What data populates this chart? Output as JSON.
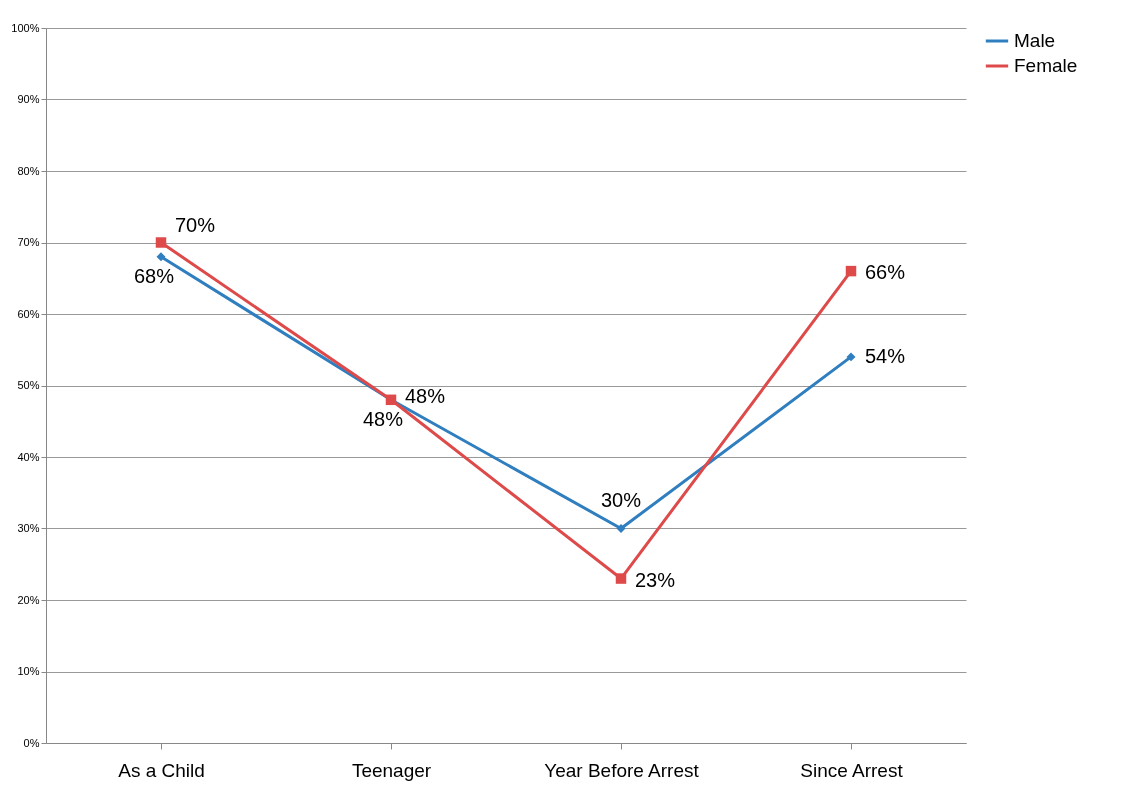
{
  "chart_data": {
    "type": "line",
    "categories": [
      "As a Child",
      "Teenager",
      "Year Before Arrest",
      "Since Arrest"
    ],
    "series": [
      {
        "name": "Male",
        "color": "#2f7ebf",
        "values": [
          68,
          48,
          30,
          54
        ],
        "value_labels": [
          "68%",
          "48%",
          "30%",
          "54%"
        ],
        "marker": "diamond"
      },
      {
        "name": "Female",
        "color": "#de4a4a",
        "values": [
          70,
          48,
          23,
          66
        ],
        "value_labels": [
          "70%",
          "48%",
          "23%",
          "66%"
        ],
        "marker": "square"
      }
    ],
    "ylim": [
      0,
      100
    ],
    "yticks": [
      {
        "value": 0,
        "label": "0%"
      },
      {
        "value": 10,
        "label": "10%"
      },
      {
        "value": 20,
        "label": "20%"
      },
      {
        "value": 30,
        "label": "30%"
      },
      {
        "value": 40,
        "label": "40%"
      },
      {
        "value": 50,
        "label": "50%"
      },
      {
        "value": 60,
        "label": "60%"
      },
      {
        "value": 70,
        "label": "70%"
      },
      {
        "value": 80,
        "label": "80%"
      },
      {
        "value": 90,
        "label": "90%"
      },
      {
        "value": 100,
        "label": "100%"
      }
    ],
    "grid": "y",
    "legend": "right",
    "line_style": "solid"
  }
}
